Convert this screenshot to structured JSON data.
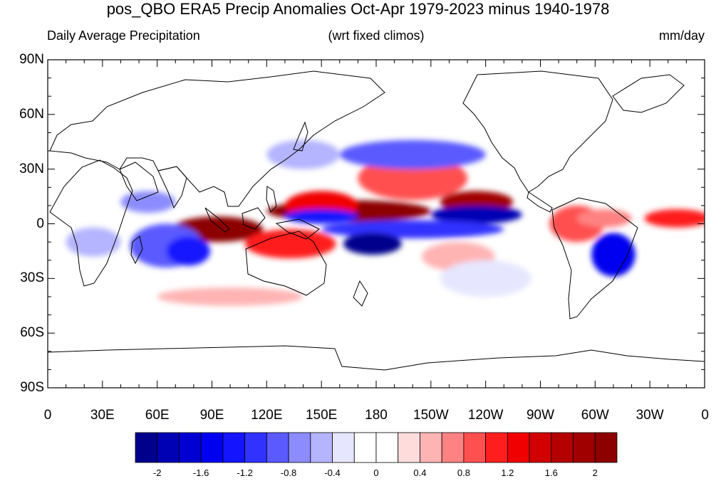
{
  "title": "pos_QBO ERA5 Precip Anomalies Oct-Apr 1979-2023 minus 1940-1978",
  "subtitle_left": "Daily Average Precipitation",
  "subtitle_center": "(wrt fixed climos)",
  "subtitle_right": "mm/day",
  "lat_labels": [
    "90N",
    "60N",
    "30N",
    "0",
    "30S",
    "60S",
    "90S"
  ],
  "lon_labels": [
    "0",
    "30E",
    "60E",
    "90E",
    "120E",
    "150E",
    "180",
    "150W",
    "120W",
    "90W",
    "60W",
    "30W",
    "0"
  ],
  "colorbar": {
    "labels": [
      "-2",
      "-1.6",
      "-1.2",
      "-0.8",
      "-0.4",
      "0",
      "0.4",
      "0.8",
      "1.2",
      "1.6",
      "2"
    ],
    "colors": [
      "#00008c",
      "#0000b4",
      "#0000d2",
      "#0000f0",
      "#1414ff",
      "#3232ff",
      "#5a5aff",
      "#8c8cff",
      "#b4b4ff",
      "#e6e6ff",
      "#ffffff",
      "#ffffff",
      "#ffdcdc",
      "#ffb4b4",
      "#ff8282",
      "#ff5050",
      "#ff1e1e",
      "#f00000",
      "#d20000",
      "#b40000",
      "#a00000",
      "#8c0000"
    ]
  },
  "chart_data": {
    "type": "heatmap",
    "title": "pos_QBO ERA5 Precip Anomalies Oct-Apr 1979-2023 minus 1940-1978",
    "subtitle_left": "Daily Average Precipitation",
    "subtitle_center": "(wrt fixed climos)",
    "units": "mm/day",
    "x_range": [
      0,
      360
    ],
    "y_range": [
      -90,
      90
    ],
    "color_scale_range": [
      -2.2,
      2.2
    ],
    "anomalies": [
      {
        "lon": 165,
        "lat": 7,
        "w": 45,
        "h": 6,
        "v": 2.0
      },
      {
        "lon": 150,
        "lat": 10,
        "w": 20,
        "h": 8,
        "v": 1.2
      },
      {
        "lon": 235,
        "lat": 12,
        "w": 20,
        "h": 6,
        "v": 1.8
      },
      {
        "lon": 93,
        "lat": -3,
        "w": 25,
        "h": 7,
        "v": 2.0
      },
      {
        "lon": 133,
        "lat": -11,
        "w": 25,
        "h": 8,
        "v": 1.0
      },
      {
        "lon": 200,
        "lat": 25,
        "w": 30,
        "h": 12,
        "v": 0.8
      },
      {
        "lon": 345,
        "lat": 3,
        "w": 18,
        "h": 5,
        "v": 1.0
      },
      {
        "lon": 290,
        "lat": 0,
        "w": 15,
        "h": 10,
        "v": 0.8
      },
      {
        "lon": 305,
        "lat": 3,
        "w": 15,
        "h": 5,
        "v": 0.6
      },
      {
        "lon": 100,
        "lat": -40,
        "w": 40,
        "h": 5,
        "v": 0.4
      },
      {
        "lon": 225,
        "lat": -18,
        "w": 20,
        "h": 8,
        "v": 0.4
      },
      {
        "lon": 235,
        "lat": 5,
        "w": 25,
        "h": 5,
        "v": -2.0
      },
      {
        "lon": 200,
        "lat": -3,
        "w": 50,
        "h": 5,
        "v": -1.2
      },
      {
        "lon": 178,
        "lat": -11,
        "w": 16,
        "h": 6,
        "v": -2.2
      },
      {
        "lon": 150,
        "lat": 4,
        "w": 20,
        "h": 4,
        "v": -1.4
      },
      {
        "lon": 200,
        "lat": 38,
        "w": 40,
        "h": 8,
        "v": -1.0
      },
      {
        "lon": 65,
        "lat": -12,
        "w": 20,
        "h": 12,
        "v": -1.0
      },
      {
        "lon": 77,
        "lat": -15,
        "w": 12,
        "h": 8,
        "v": -1.4
      },
      {
        "lon": 55,
        "lat": 12,
        "w": 15,
        "h": 6,
        "v": -0.8
      },
      {
        "lon": 310,
        "lat": -17,
        "w": 12,
        "h": 12,
        "v": -1.6
      },
      {
        "lon": 25,
        "lat": -10,
        "w": 15,
        "h": 8,
        "v": -0.6
      },
      {
        "lon": 240,
        "lat": -30,
        "w": 25,
        "h": 10,
        "v": -0.3
      },
      {
        "lon": 140,
        "lat": 38,
        "w": 20,
        "h": 8,
        "v": -0.6
      }
    ]
  }
}
